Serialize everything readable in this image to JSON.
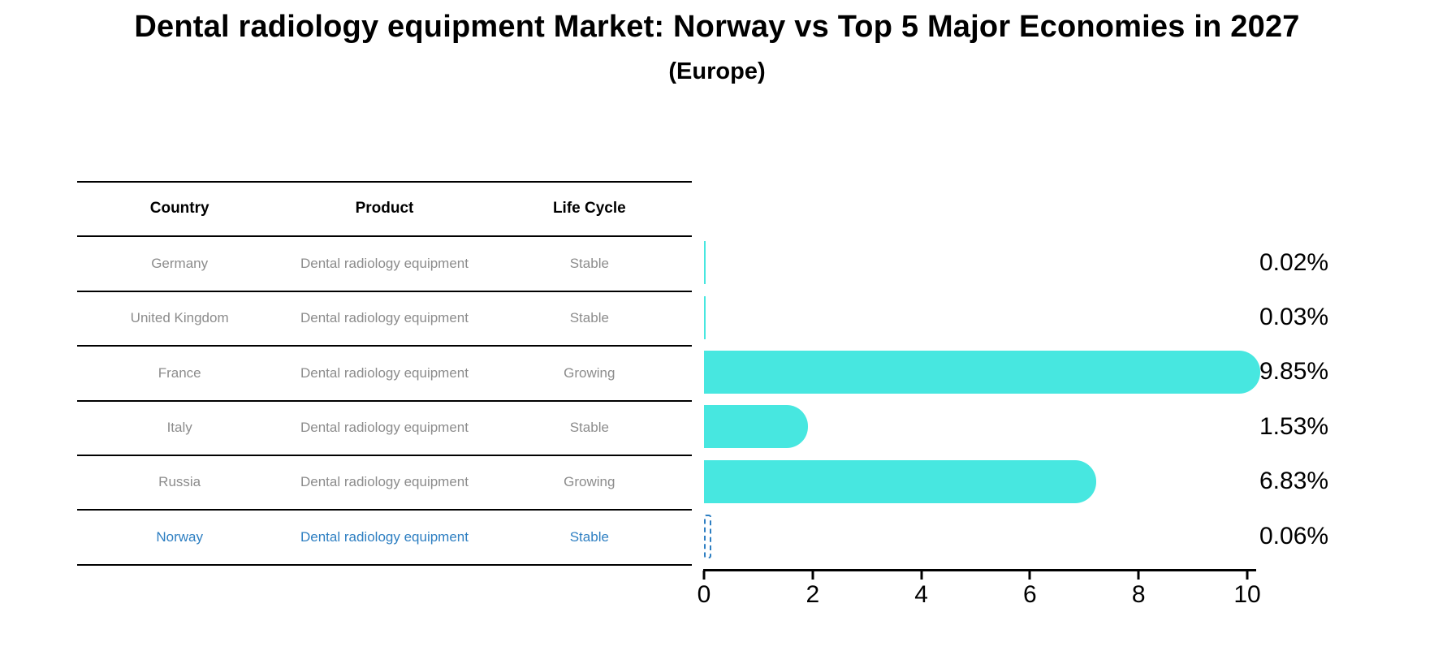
{
  "title": "Dental radiology equipment Market: Norway vs Top 5 Major Economies in 2027",
  "subtitle": "(Europe)",
  "table": {
    "headers": [
      "Country",
      "Product",
      "Life Cycle"
    ],
    "rows": [
      {
        "country": "Germany",
        "product": "Dental radiology equipment",
        "life_cycle": "Stable",
        "highlight": false
      },
      {
        "country": "United Kingdom",
        "product": "Dental radiology equipment",
        "life_cycle": "Stable",
        "highlight": false
      },
      {
        "country": "France",
        "product": "Dental radiology equipment",
        "life_cycle": "Growing",
        "highlight": false
      },
      {
        "country": "Italy",
        "product": "Dental radiology equipment",
        "life_cycle": "Stable",
        "highlight": false
      },
      {
        "country": "Russia",
        "product": "Dental radiology equipment",
        "life_cycle": "Growing",
        "highlight": false
      },
      {
        "country": "Norway",
        "product": "Dental radiology equipment",
        "life_cycle": "Stable",
        "highlight": true
      }
    ]
  },
  "chart_data": {
    "type": "bar",
    "orientation": "horizontal",
    "title": "Dental radiology equipment Market: Norway vs Top 5 Major Economies in 2027 (Europe)",
    "categories": [
      "Germany",
      "United Kingdom",
      "France",
      "Italy",
      "Russia",
      "Norway"
    ],
    "values": [
      0.02,
      0.03,
      9.85,
      1.53,
      6.83,
      0.06
    ],
    "labels": [
      "0.02%",
      "0.03%",
      "9.85%",
      "1.53%",
      "6.83%",
      "0.06%"
    ],
    "xlim": [
      0,
      10.2
    ],
    "xticks": [
      0,
      2,
      4,
      6,
      8,
      10
    ],
    "grid": false,
    "legend": false,
    "bar_color": "#47e7e0",
    "highlight_index": 5,
    "highlight_style": "dashed-outline",
    "highlight_color": "#2e7fc2"
  }
}
